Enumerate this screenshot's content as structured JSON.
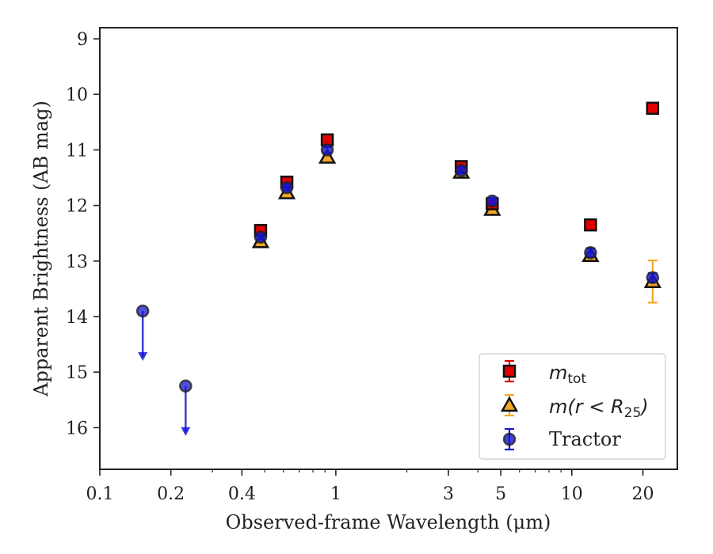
{
  "chart_data": {
    "type": "scatter",
    "title": "",
    "xlabel": "Observed-frame Wavelength (μm)",
    "ylabel": "Apparent Brightness (AB mag)",
    "xscale": "log",
    "xlim": [
      0.1,
      28
    ],
    "ylim": [
      16.75,
      8.8
    ],
    "y_inverted": true,
    "x_ticks": [
      {
        "value": 0.1,
        "label": "0.1"
      },
      {
        "value": 0.2,
        "label": "0.2"
      },
      {
        "value": 0.4,
        "label": "0.4"
      },
      {
        "value": 1,
        "label": "1"
      },
      {
        "value": 3,
        "label": "3"
      },
      {
        "value": 5,
        "label": "5"
      },
      {
        "value": 10,
        "label": "10"
      },
      {
        "value": 20,
        "label": "20"
      }
    ],
    "y_ticks": [
      {
        "value": 9,
        "label": "9"
      },
      {
        "value": 10,
        "label": "10"
      },
      {
        "value": 11,
        "label": "11"
      },
      {
        "value": 12,
        "label": "12"
      },
      {
        "value": 13,
        "label": "13"
      },
      {
        "value": 14,
        "label": "14"
      },
      {
        "value": 15,
        "label": "15"
      },
      {
        "value": 16,
        "label": "16"
      }
    ],
    "legend_position": "lower-right",
    "series": [
      {
        "name": "m_tot",
        "marker": "square",
        "color": "#e00000",
        "points": [
          {
            "x": 0.48,
            "y": 12.45,
            "err": 0.05
          },
          {
            "x": 0.62,
            "y": 11.58,
            "err": 0.05
          },
          {
            "x": 0.92,
            "y": 10.82,
            "err": 0.05
          },
          {
            "x": 3.4,
            "y": 11.3,
            "err": 0.05
          },
          {
            "x": 4.6,
            "y": 11.97,
            "err": 0.05
          },
          {
            "x": 12.0,
            "y": 12.35,
            "err": 0.05
          },
          {
            "x": 22.0,
            "y": 10.25,
            "err": 0.05
          }
        ]
      },
      {
        "name": "m(r < R_25)",
        "marker": "triangle",
        "color": "#f5a623",
        "points": [
          {
            "x": 0.48,
            "y": 12.65,
            "err": 0.05
          },
          {
            "x": 0.62,
            "y": 11.77,
            "err": 0.05
          },
          {
            "x": 0.92,
            "y": 11.13,
            "err": 0.05
          },
          {
            "x": 3.4,
            "y": 11.4,
            "err": 0.05
          },
          {
            "x": 4.6,
            "y": 12.07,
            "err": 0.05
          },
          {
            "x": 12.0,
            "y": 12.9,
            "err": 0.05
          },
          {
            "x": 22.0,
            "y": 13.37,
            "err": 0.38
          }
        ]
      },
      {
        "name": "Tractor",
        "marker": "circle",
        "color": "#1515d0",
        "points": [
          {
            "x": 0.152,
            "y": 13.9,
            "upper_limit": true
          },
          {
            "x": 0.231,
            "y": 15.25,
            "upper_limit": true
          },
          {
            "x": 0.48,
            "y": 12.57,
            "err": 0.05
          },
          {
            "x": 0.62,
            "y": 11.68,
            "err": 0.05
          },
          {
            "x": 0.92,
            "y": 11.0,
            "err": 0.05
          },
          {
            "x": 3.4,
            "y": 11.37,
            "err": 0.05
          },
          {
            "x": 4.6,
            "y": 11.92,
            "err": 0.05
          },
          {
            "x": 12.0,
            "y": 12.85,
            "err": 0.08
          },
          {
            "x": 22.0,
            "y": 13.3,
            "err": 0.08
          }
        ]
      }
    ]
  },
  "legend": {
    "items": [
      {
        "label_main": "m",
        "label_sub": "tot"
      },
      {
        "label_main": "m(r < R",
        "label_sub": "25",
        "label_tail": ")"
      },
      {
        "label_main": "Tractor"
      }
    ]
  }
}
